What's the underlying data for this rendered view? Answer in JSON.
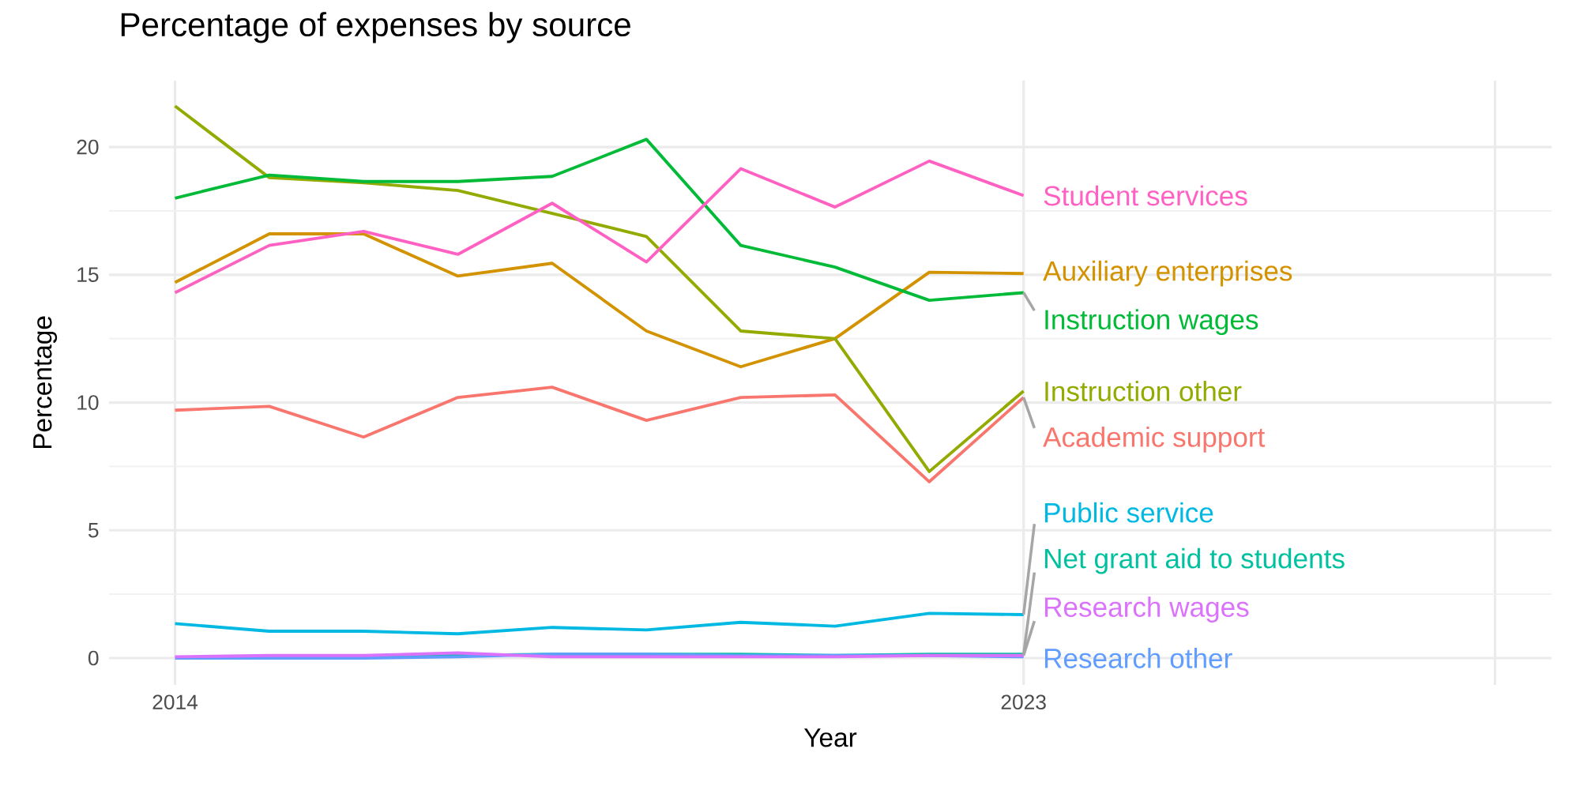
{
  "chart_data": {
    "type": "line",
    "title": "Percentage of expenses by source",
    "xlabel": "Year",
    "ylabel": "Percentage",
    "x": [
      2014,
      2015,
      2016,
      2017,
      2018,
      2019,
      2020,
      2021,
      2022,
      2023
    ],
    "xlim": [
      2013.3,
      2028.6
    ],
    "xticks": [
      2014,
      2023,
      {
        "value": 2028,
        "label": null
      }
    ],
    "ylim": [
      -1.05,
      22.6
    ],
    "yticks": [
      0,
      5,
      10,
      15,
      20
    ],
    "grid": true,
    "legend": false,
    "series": [
      {
        "name": "Academic support",
        "color": "#F8766D",
        "values": [
          9.7,
          9.85,
          8.65,
          10.2,
          10.6,
          9.3,
          10.2,
          10.3,
          6.9,
          10.2
        ]
      },
      {
        "name": "Auxiliary enterprises",
        "color": "#D39200",
        "values": [
          14.7,
          16.6,
          16.6,
          14.95,
          15.45,
          12.8,
          11.4,
          12.5,
          15.1,
          15.05
        ]
      },
      {
        "name": "Instruction other",
        "color": "#93AA00",
        "values": [
          21.6,
          18.8,
          18.6,
          18.3,
          17.4,
          16.5,
          12.8,
          12.5,
          7.3,
          10.45
        ]
      },
      {
        "name": "Instruction wages",
        "color": "#00BA38",
        "values": [
          18.0,
          18.9,
          18.65,
          18.65,
          18.85,
          20.3,
          16.15,
          15.3,
          14.0,
          14.3
        ]
      },
      {
        "name": "Net grant aid to students",
        "color": "#00C19F",
        "values": [
          null,
          null,
          0.05,
          0.1,
          0.15,
          0.15,
          0.15,
          0.1,
          0.15,
          0.15
        ]
      },
      {
        "name": "Public service",
        "color": "#00B9E3",
        "values": [
          1.35,
          1.05,
          1.05,
          0.95,
          1.2,
          1.1,
          1.4,
          1.25,
          1.75,
          1.7
        ]
      },
      {
        "name": "Research other",
        "color": "#619CFF",
        "values": [
          0.0,
          0.0,
          0.0,
          0.05,
          0.15,
          0.15,
          0.1,
          0.1,
          0.1,
          0.05
        ]
      },
      {
        "name": "Research wages",
        "color": "#DB72FB",
        "values": [
          0.05,
          0.1,
          0.1,
          0.2,
          0.05,
          0.05,
          0.05,
          0.05,
          0.1,
          0.1
        ]
      },
      {
        "name": "Student services",
        "color": "#FF61C3",
        "values": [
          14.3,
          16.15,
          16.7,
          15.8,
          17.8,
          15.5,
          19.15,
          17.65,
          19.45,
          18.1
        ]
      }
    ]
  }
}
